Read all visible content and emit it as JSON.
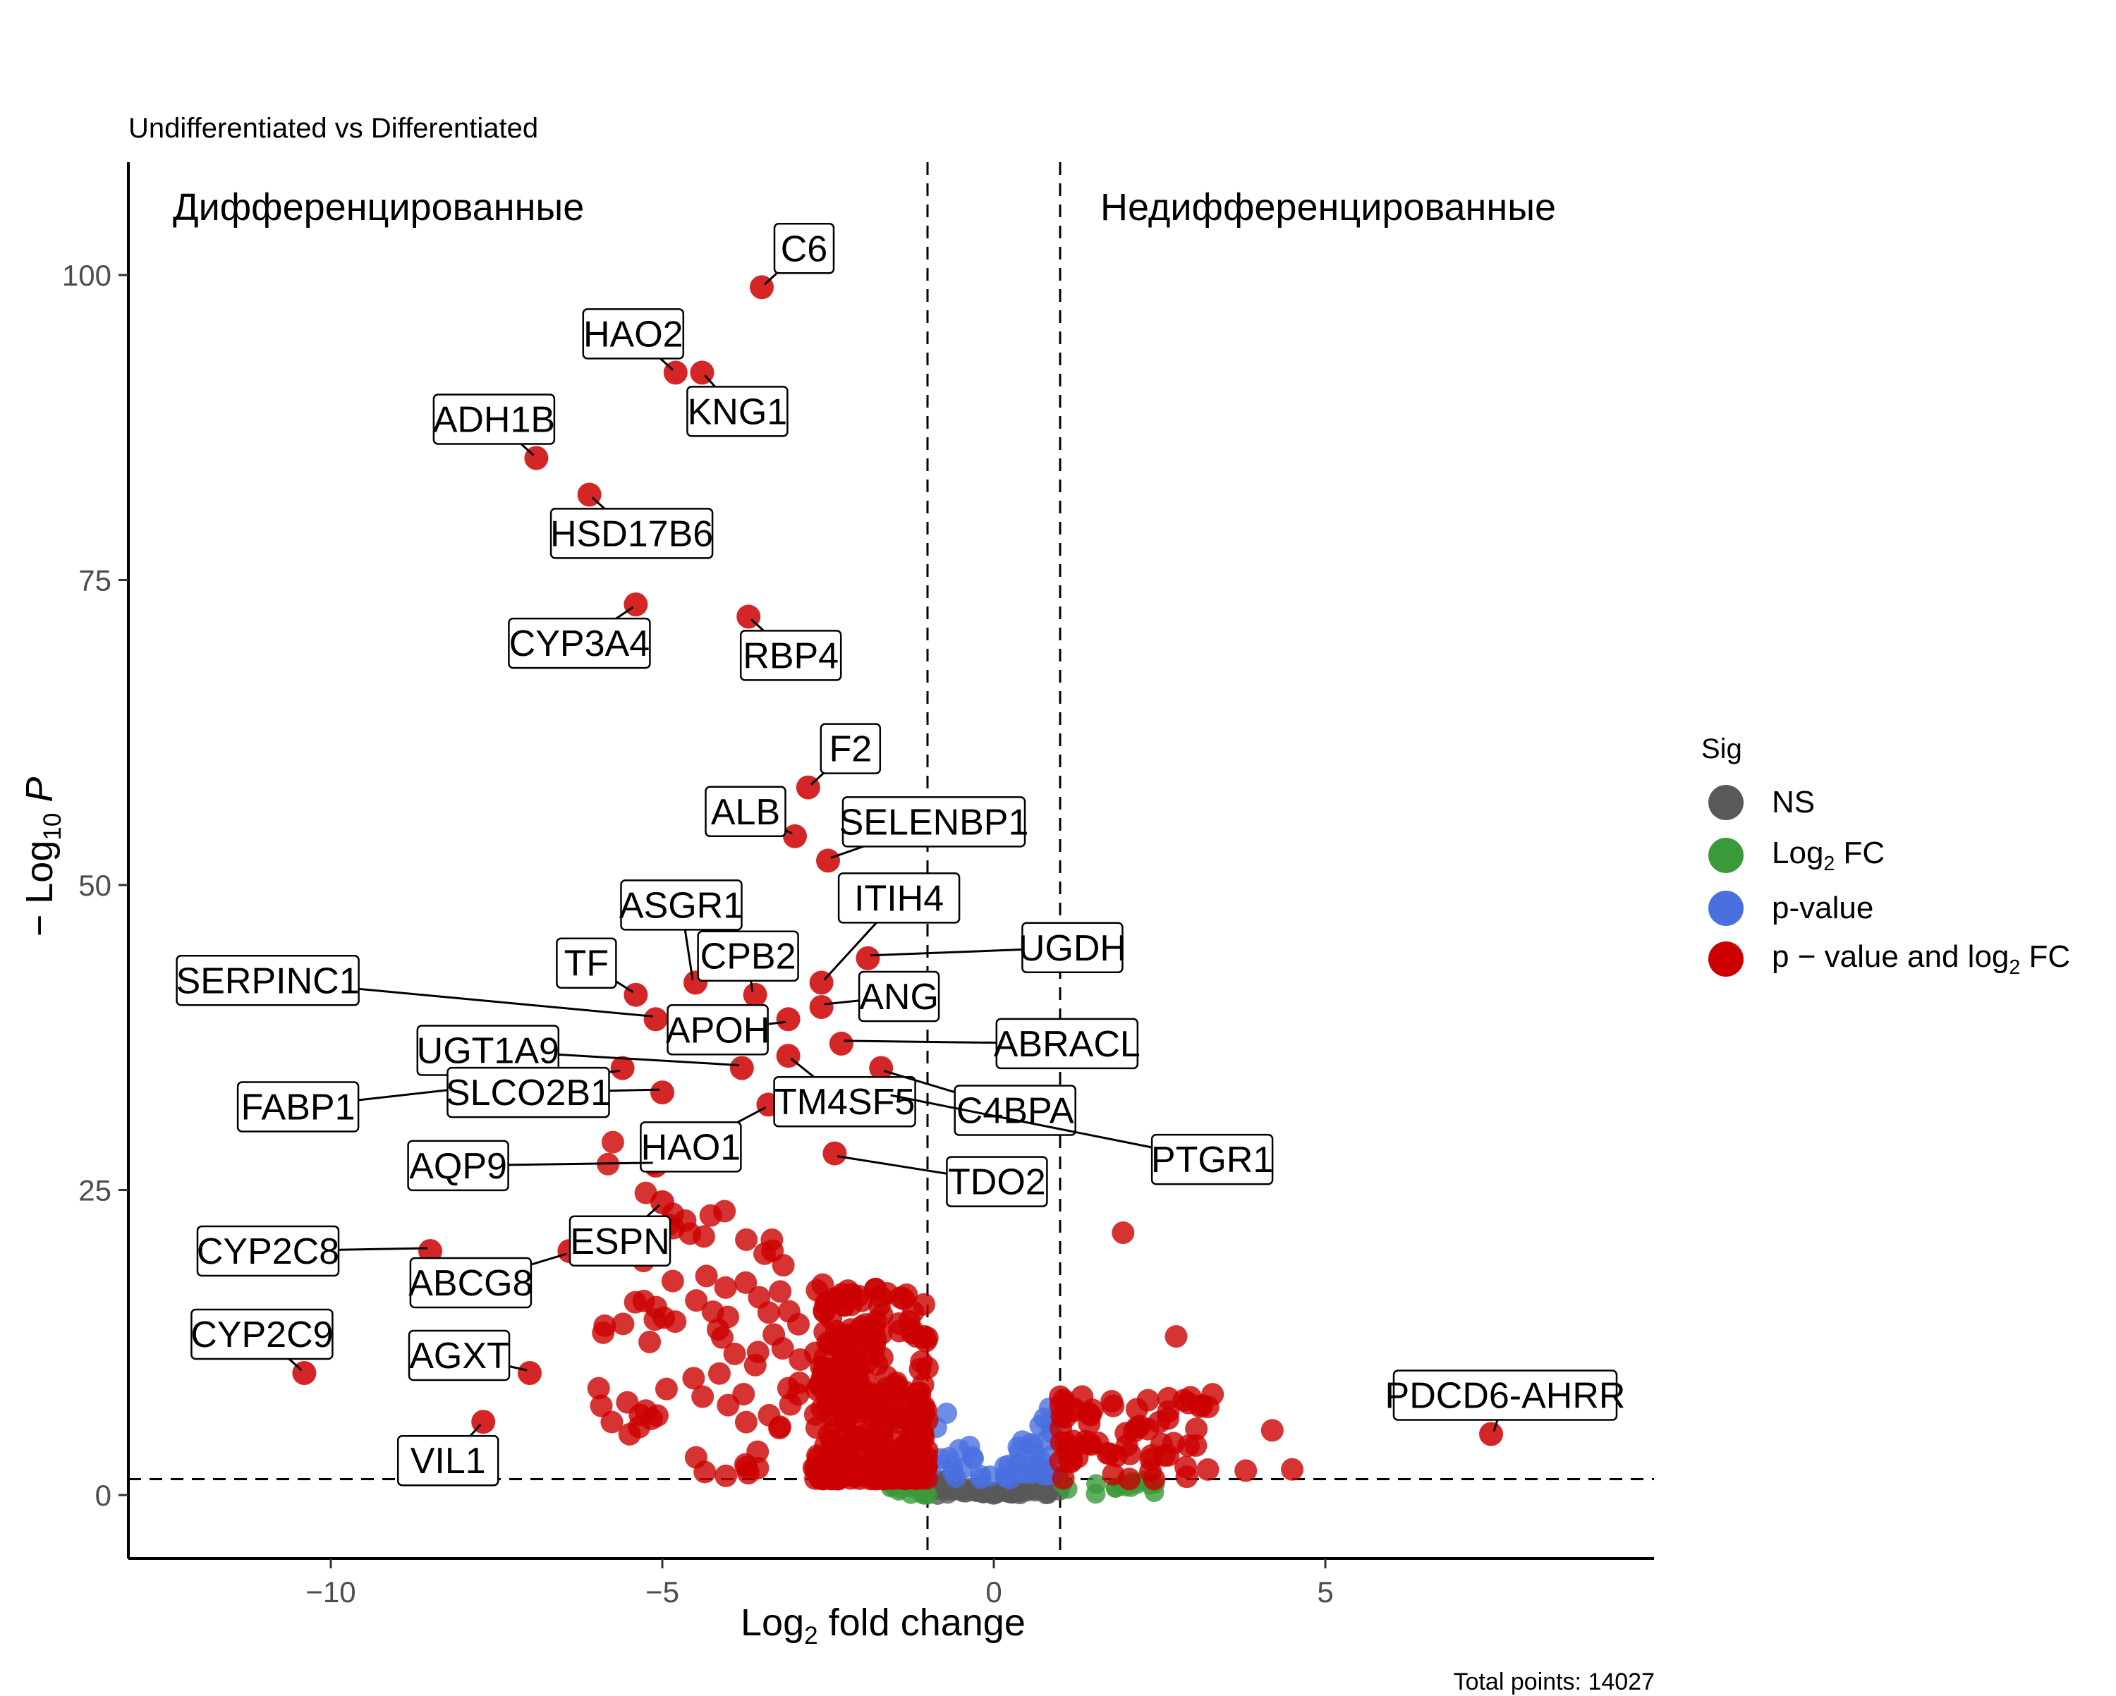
{
  "subtitle": "Undifferentiated vs Differentiated",
  "caption": "Total points: 14027",
  "chart_data": {
    "type": "scatter",
    "subtype": "volcano",
    "xlabel": "Log2 fold change",
    "ylabel": "−Log10 P",
    "xlim": [
      -13,
      10
    ],
    "ylim": [
      -5,
      110
    ],
    "x_ticks": [
      -10,
      -5,
      0,
      5
    ],
    "y_ticks": [
      0,
      25,
      50,
      75,
      100
    ],
    "thresholds": {
      "log2fc": [
        -1,
        1
      ],
      "neglog10p": 1.3
    },
    "annotations": [
      {
        "text": "Дифференцированные",
        "position": "top-left"
      },
      {
        "text": "Недифференцированные",
        "position": "top-right"
      }
    ],
    "legend": {
      "title": "Sig",
      "placement": "right",
      "entries": [
        {
          "name": "NS",
          "color": "#595959"
        },
        {
          "name": "Log2 FC",
          "color": "#3a9a3a"
        },
        {
          "name": "p-value",
          "color": "#4a70e0"
        },
        {
          "name": "p − value and log2 FC",
          "color": "#cc0000"
        }
      ]
    },
    "labeled_genes": [
      {
        "gene": "C6",
        "x": -3.5,
        "y": 99
      },
      {
        "gene": "HAO2",
        "x": -4.8,
        "y": 92
      },
      {
        "gene": "KNG1",
        "x": -4.4,
        "y": 92
      },
      {
        "gene": "ADH1B",
        "x": -6.9,
        "y": 85
      },
      {
        "gene": "HSD17B6",
        "x": -6.1,
        "y": 82
      },
      {
        "gene": "CYP3A4",
        "x": -5.4,
        "y": 73
      },
      {
        "gene": "RBP4",
        "x": -3.7,
        "y": 72
      },
      {
        "gene": "F2",
        "x": -2.8,
        "y": 58
      },
      {
        "gene": "ALB",
        "x": -3.0,
        "y": 54
      },
      {
        "gene": "SELENBP1",
        "x": -2.5,
        "y": 52
      },
      {
        "gene": "ASGR1",
        "x": -4.5,
        "y": 42
      },
      {
        "gene": "ITIH4",
        "x": -2.6,
        "y": 42
      },
      {
        "gene": "UGDH",
        "x": -1.9,
        "y": 44
      },
      {
        "gene": "TF",
        "x": -5.4,
        "y": 41
      },
      {
        "gene": "CPB2",
        "x": -3.6,
        "y": 41
      },
      {
        "gene": "SERPINC1",
        "x": -5.1,
        "y": 39
      },
      {
        "gene": "ANG",
        "x": -2.6,
        "y": 40
      },
      {
        "gene": "APOH",
        "x": -3.1,
        "y": 39
      },
      {
        "gene": "UGT1A9",
        "x": -3.8,
        "y": 35
      },
      {
        "gene": "ABRACL",
        "x": -2.3,
        "y": 37
      },
      {
        "gene": "TM4SF5",
        "x": -3.1,
        "y": 36
      },
      {
        "gene": "C4BPA",
        "x": -1.7,
        "y": 35
      },
      {
        "gene": "PTGR1",
        "x": -1.6,
        "y": 33
      },
      {
        "gene": "FABP1",
        "x": -5.6,
        "y": 35
      },
      {
        "gene": "SLCO2B1",
        "x": -5.0,
        "y": 33
      },
      {
        "gene": "HAO1",
        "x": -3.4,
        "y": 32
      },
      {
        "gene": "TDO2",
        "x": -2.4,
        "y": 28
      },
      {
        "gene": "AQP9",
        "x": -5.1,
        "y": 27
      },
      {
        "gene": "ESPN",
        "x": -5.0,
        "y": 24
      },
      {
        "gene": "CYP2C8",
        "x": -8.5,
        "y": 20
      },
      {
        "gene": "ABCG8",
        "x": -6.4,
        "y": 20
      },
      {
        "gene": "CYP2C9",
        "x": -10.4,
        "y": 10
      },
      {
        "gene": "AGXT",
        "x": -7.0,
        "y": 10
      },
      {
        "gene": "VIL1",
        "x": -7.7,
        "y": 6
      },
      {
        "gene": "PDCD6-AHRR",
        "x": 7.5,
        "y": 5
      }
    ]
  }
}
